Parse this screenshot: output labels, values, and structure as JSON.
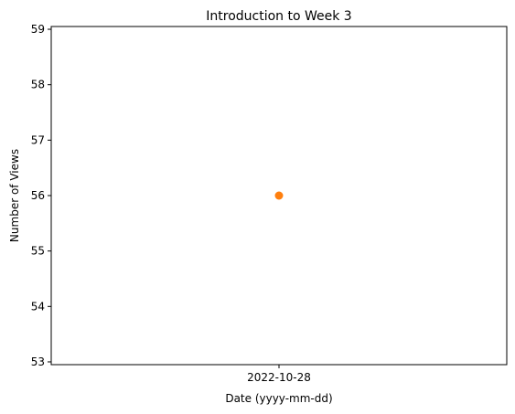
{
  "chart_data": {
    "type": "scatter",
    "title": "Introduction to Week 3",
    "xlabel": "Date (yyyy-mm-dd)",
    "ylabel": "Number of Views",
    "x_ticks": [
      "2022-10-28"
    ],
    "y_ticks": [
      "53",
      "54",
      "55",
      "56",
      "57",
      "58",
      "59"
    ],
    "ylim": [
      52.95,
      59.05
    ],
    "grid": false,
    "series": [
      {
        "color": "#ff7f0e",
        "points": [
          {
            "x": "2022-10-28",
            "y": 56
          }
        ]
      }
    ]
  }
}
